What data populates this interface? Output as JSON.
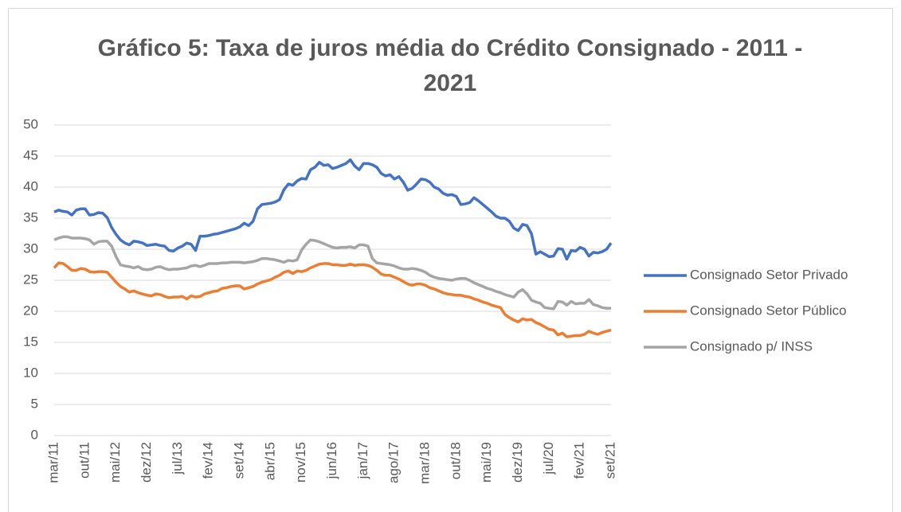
{
  "chart_data": {
    "type": "line",
    "title": "Gráfico 5: Taxa de juros média do Crédito Consignado - 2011 - 2021",
    "categories": [
      "mar/11",
      null,
      null,
      null,
      null,
      null,
      null,
      "out/11",
      null,
      null,
      null,
      null,
      null,
      null,
      "mai/12",
      null,
      null,
      null,
      null,
      null,
      null,
      "dez/12",
      null,
      null,
      null,
      null,
      null,
      null,
      "jul/13",
      null,
      null,
      null,
      null,
      null,
      null,
      "fev/14",
      null,
      null,
      null,
      null,
      null,
      null,
      "set/14",
      null,
      null,
      null,
      null,
      null,
      null,
      "abr/15",
      null,
      null,
      null,
      null,
      null,
      null,
      "nov/15",
      null,
      null,
      null,
      null,
      null,
      null,
      "jun/16",
      null,
      null,
      null,
      null,
      null,
      null,
      "jan/17",
      null,
      null,
      null,
      null,
      null,
      null,
      "ago/17",
      null,
      null,
      null,
      null,
      null,
      null,
      "mar/18",
      null,
      null,
      null,
      null,
      null,
      null,
      "out/18",
      null,
      null,
      null,
      null,
      null,
      null,
      "mai/19",
      null,
      null,
      null,
      null,
      null,
      null,
      "dez/19",
      null,
      null,
      null,
      null,
      null,
      null,
      "jul/20",
      null,
      null,
      null,
      null,
      null,
      null,
      "fev/21",
      null,
      null,
      null,
      null,
      null,
      null,
      "set/21"
    ],
    "series": [
      {
        "name": "Consignado Setor Privado",
        "color": "#4472c4",
        "values": [
          36.0,
          36.3,
          36.1,
          36.0,
          35.5,
          36.3,
          36.5,
          36.5,
          35.5,
          35.6,
          35.9,
          35.8,
          35.1,
          33.5,
          32.4,
          31.5,
          31.0,
          30.7,
          31.3,
          31.2,
          31.0,
          30.6,
          30.7,
          30.8,
          30.6,
          30.5,
          29.8,
          29.7,
          30.2,
          30.5,
          31.0,
          30.8,
          29.8,
          32.1,
          32.1,
          32.2,
          32.4,
          32.5,
          32.7,
          32.9,
          33.1,
          33.3,
          33.6,
          34.2,
          33.8,
          34.5,
          36.5,
          37.2,
          37.3,
          37.4,
          37.6,
          38.0,
          39.6,
          40.5,
          40.3,
          41.0,
          41.4,
          41.3,
          42.8,
          43.2,
          44.0,
          43.5,
          43.6,
          43.0,
          43.2,
          43.5,
          43.8,
          44.4,
          43.4,
          42.8,
          43.8,
          43.8,
          43.6,
          43.2,
          42.2,
          41.8,
          42.0,
          41.3,
          41.7,
          40.8,
          39.5,
          39.8,
          40.5,
          41.3,
          41.2,
          40.8,
          40.0,
          39.7,
          39.0,
          38.7,
          38.8,
          38.5,
          37.2,
          37.3,
          37.5,
          38.3,
          37.8,
          37.2,
          36.6,
          36.0,
          35.3,
          35.0,
          35.0,
          34.5,
          33.4,
          33.0,
          34.0,
          33.8,
          32.5,
          29.2,
          29.6,
          29.2,
          28.8,
          28.9,
          30.1,
          30.0,
          28.4,
          29.8,
          29.7,
          30.3,
          30.0,
          28.9,
          29.5,
          29.4,
          29.6,
          30.0,
          31.0
        ]
      },
      {
        "name": "Consignado Setor Público",
        "color": "#ed7d31",
        "values": [
          27.0,
          27.8,
          27.7,
          27.2,
          26.6,
          26.6,
          26.9,
          26.8,
          26.4,
          26.3,
          26.4,
          26.4,
          26.3,
          25.5,
          24.7,
          24.0,
          23.6,
          23.1,
          23.3,
          23.0,
          22.8,
          22.6,
          22.5,
          22.8,
          22.7,
          22.4,
          22.2,
          22.3,
          22.3,
          22.4,
          22.0,
          22.5,
          22.3,
          22.4,
          22.8,
          23.0,
          23.2,
          23.3,
          23.7,
          23.8,
          24.0,
          24.1,
          24.1,
          23.6,
          23.8,
          24.0,
          24.4,
          24.7,
          24.9,
          25.1,
          25.5,
          25.8,
          26.3,
          26.5,
          26.1,
          26.5,
          26.4,
          26.6,
          27.0,
          27.3,
          27.6,
          27.7,
          27.7,
          27.5,
          27.5,
          27.4,
          27.4,
          27.6,
          27.4,
          27.5,
          27.5,
          27.4,
          27.1,
          26.6,
          26.0,
          25.8,
          25.8,
          25.5,
          25.2,
          24.8,
          24.4,
          24.2,
          24.4,
          24.4,
          24.2,
          23.8,
          23.6,
          23.3,
          23.0,
          22.8,
          22.7,
          22.6,
          22.6,
          22.4,
          22.3,
          22.0,
          21.8,
          21.5,
          21.3,
          21.0,
          20.8,
          20.6,
          19.5,
          19.0,
          18.6,
          18.3,
          18.8,
          18.6,
          18.7,
          18.2,
          17.9,
          17.5,
          17.1,
          17.0,
          16.2,
          16.5,
          15.9,
          16.0,
          16.1,
          16.1,
          16.3,
          16.8,
          16.5,
          16.3,
          16.6,
          16.8,
          17.0
        ]
      },
      {
        "name": "Consignado p/ INSS",
        "color": "#a5a5a5",
        "values": [
          31.5,
          31.8,
          32.0,
          32.0,
          31.8,
          31.8,
          31.8,
          31.7,
          31.5,
          30.8,
          31.2,
          31.3,
          31.3,
          30.5,
          28.8,
          27.5,
          27.3,
          27.2,
          27.0,
          27.2,
          26.8,
          26.7,
          26.8,
          27.1,
          27.2,
          26.9,
          26.7,
          26.8,
          26.8,
          26.9,
          27.0,
          27.3,
          27.4,
          27.2,
          27.4,
          27.7,
          27.7,
          27.7,
          27.8,
          27.8,
          27.9,
          27.9,
          27.9,
          27.8,
          27.9,
          28.0,
          28.2,
          28.5,
          28.5,
          28.4,
          28.3,
          28.1,
          27.9,
          28.2,
          28.1,
          28.3,
          29.9,
          30.8,
          31.5,
          31.4,
          31.2,
          30.9,
          30.6,
          30.3,
          30.2,
          30.3,
          30.3,
          30.4,
          30.2,
          30.7,
          30.7,
          30.5,
          28.5,
          27.8,
          27.7,
          27.6,
          27.5,
          27.3,
          27.0,
          26.8,
          26.8,
          26.9,
          26.8,
          26.6,
          26.3,
          25.8,
          25.5,
          25.3,
          25.2,
          25.1,
          25.0,
          25.2,
          25.3,
          25.3,
          25.0,
          24.6,
          24.3,
          24.0,
          23.7,
          23.5,
          23.2,
          23.0,
          22.7,
          22.5,
          22.3,
          23.1,
          23.5,
          22.8,
          21.8,
          21.5,
          21.3,
          20.6,
          20.5,
          20.4,
          21.6,
          21.5,
          21.0,
          21.6,
          21.2,
          21.3,
          21.3,
          21.9,
          21.1,
          20.9,
          20.6,
          20.5,
          20.5
        ]
      }
    ],
    "ylim": [
      0,
      50
    ],
    "yticks": [
      0,
      5,
      10,
      15,
      20,
      25,
      30,
      35,
      40,
      45,
      50
    ],
    "grid": true,
    "legend": "right"
  }
}
